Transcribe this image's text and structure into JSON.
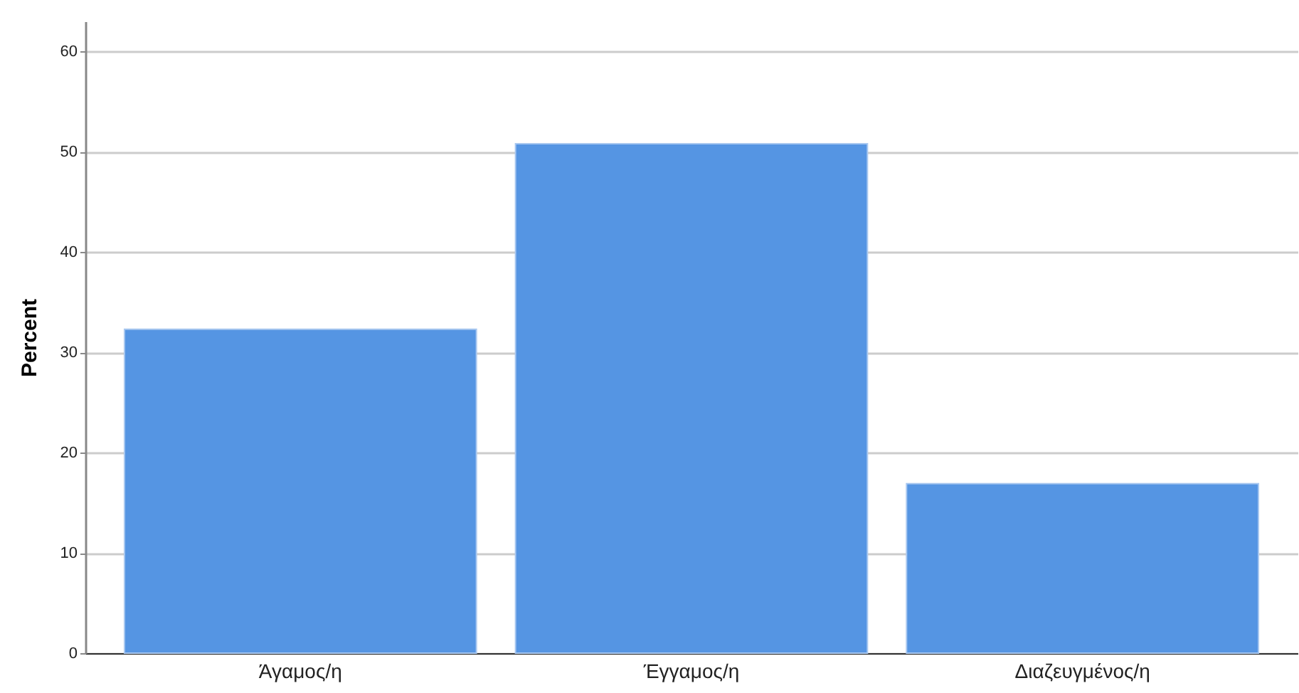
{
  "chart_data": {
    "type": "bar",
    "ylabel": "Percent",
    "categories": [
      "Άγαμος/η",
      "Έγγαμος/η",
      "Διαζευγμένος/η"
    ],
    "values": [
      32.3,
      50.8,
      16.9
    ],
    "color": "#5595e3",
    "ylim": [
      0,
      63
    ],
    "yticks": [
      0,
      10,
      20,
      30,
      40,
      50,
      60
    ],
    "grid": "y"
  }
}
